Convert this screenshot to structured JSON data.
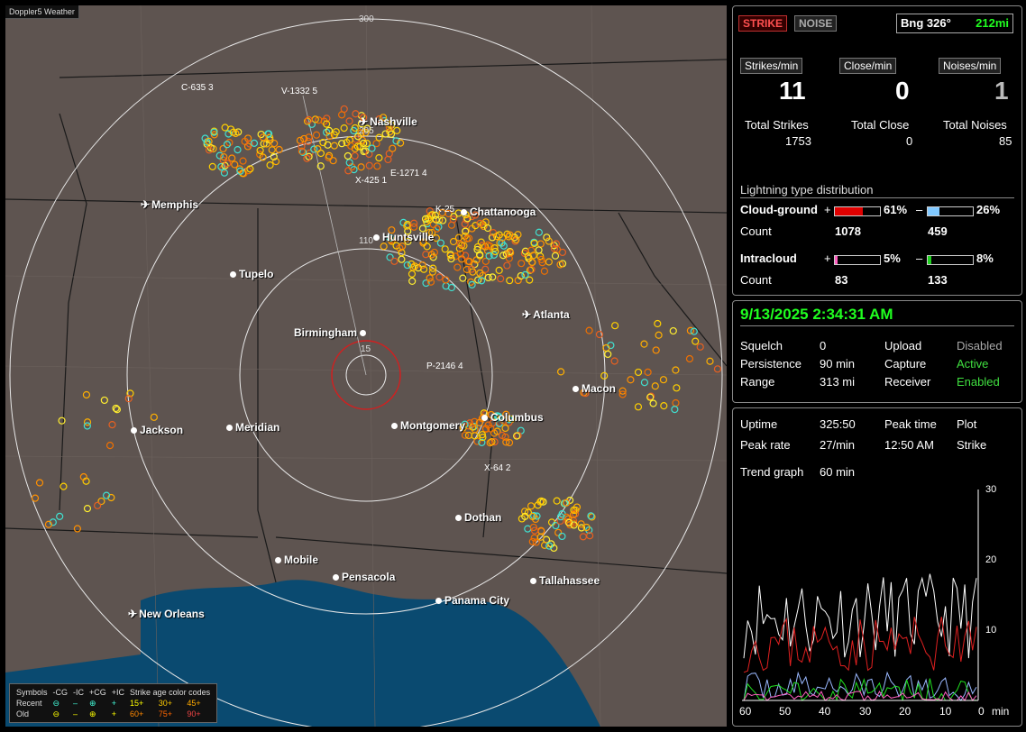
{
  "app_title": "Doppler5 Weather",
  "map": {
    "ring_labels": [
      "300",
      "205",
      "110",
      "15"
    ],
    "cities": [
      {
        "name": "Nashville",
        "plane": true
      },
      {
        "name": "Memphis",
        "plane": true
      },
      {
        "name": "Chattanooga",
        "plane": false
      },
      {
        "name": "Huntsville",
        "plane": false
      },
      {
        "name": "Tupelo",
        "plane": false
      },
      {
        "name": "Atlanta",
        "plane": true
      },
      {
        "name": "Birmingham",
        "plane": false
      },
      {
        "name": "Macon",
        "plane": false
      },
      {
        "name": "Jackson",
        "plane": true
      },
      {
        "name": "Meridian",
        "plane": false
      },
      {
        "name": "Montgomery",
        "plane": false
      },
      {
        "name": "Columbus",
        "plane": false
      },
      {
        "name": "Dothan",
        "plane": false
      },
      {
        "name": "Mobile",
        "plane": false
      },
      {
        "name": "Pensacola",
        "plane": false
      },
      {
        "name": "Tallahassee",
        "plane": false
      },
      {
        "name": "Panama City",
        "plane": false
      },
      {
        "name": "New Orleans",
        "plane": true
      }
    ],
    "stations": [
      "C-635 3",
      "V-1332 5",
      "E-1271 4",
      "X-425 1",
      "K-25",
      "P-2146 4",
      "X-64 2"
    ]
  },
  "legend": {
    "symbols_label": "Symbols",
    "headers": [
      "-CG",
      "-IC",
      "+CG",
      "+IC"
    ],
    "codes_label": "Strike age color codes",
    "recent_label": "Recent",
    "old_label": "Old",
    "recent_ages": [
      "15+",
      "30+",
      "45+"
    ],
    "old_ages": [
      "60+",
      "75+",
      "90+"
    ]
  },
  "top": {
    "strike_btn": "STRIKE",
    "noise_btn": "NOISE",
    "bearing": "Bng 326°",
    "distance": "212mi",
    "strikes_min_btn": "Strikes/min",
    "close_min_btn": "Close/min",
    "noises_min_btn": "Noises/min",
    "strikes_min": "11",
    "close_min": "0",
    "noises_min": "1",
    "total_strikes_label": "Total Strikes",
    "total_close_label": "Total Close",
    "total_noises_label": "Total Noises",
    "total_strikes": "1753",
    "total_close": "0",
    "total_noises": "85",
    "dist_title": "Lightning type distribution",
    "cg_label": "Cloud-ground",
    "ic_label": "Intracloud",
    "count_label": "Count",
    "plus": "+",
    "minus": "–",
    "cg_pos_pct": "61%",
    "cg_neg_pct": "26%",
    "ic_pos_pct": "5%",
    "ic_neg_pct": "8%",
    "cg_pos_count": "1078",
    "cg_neg_count": "459",
    "ic_pos_count": "83",
    "ic_neg_count": "133",
    "cg_pos_frac": 0.61,
    "cg_neg_frac": 0.26,
    "ic_pos_frac": 0.05,
    "ic_neg_frac": 0.08
  },
  "status": {
    "datetime": "9/13/2025 2:34:31 AM",
    "squelch_label": "Squelch",
    "squelch": "0",
    "persistence_label": "Persistence",
    "persistence": "90 min",
    "range_label": "Range",
    "range": "313 mi",
    "upload_label": "Upload",
    "upload": "Disabled",
    "capture_label": "Capture",
    "capture": "Active",
    "receiver_label": "Receiver",
    "receiver": "Enabled"
  },
  "trend": {
    "uptime_label": "Uptime",
    "uptime": "325:50",
    "peak_time_label": "Peak time",
    "peak_time": "12:50 AM",
    "plot_label": "Plot",
    "plot": "Strike",
    "peak_rate_label": "Peak rate",
    "peak_rate": "27/min",
    "trend_label": "Trend graph",
    "trend_window": "60 min",
    "y_ticks": [
      "30",
      "20",
      "10"
    ],
    "x_ticks": [
      "60",
      "50",
      "40",
      "30",
      "20",
      "10",
      "0"
    ],
    "x_unit": "min"
  },
  "colors": {
    "strike_red": "#e02020",
    "active_green": "#40e040",
    "accent_green": "#20ff20"
  }
}
